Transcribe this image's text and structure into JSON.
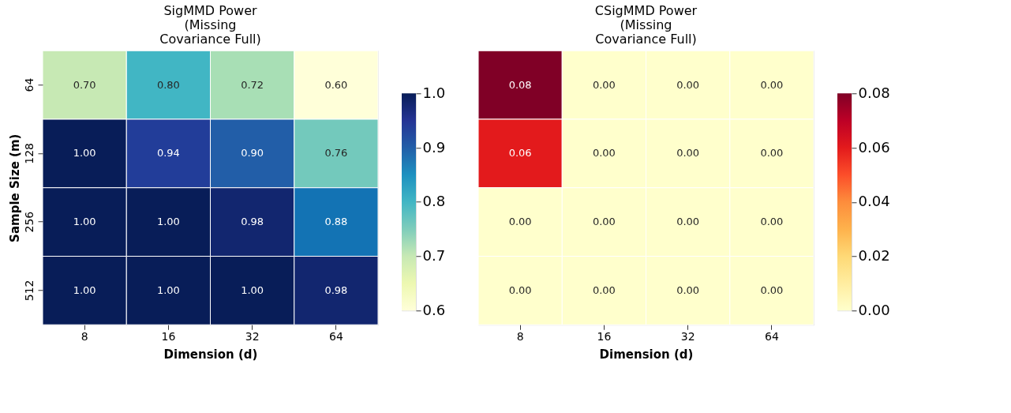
{
  "chart_data": [
    {
      "type": "heatmap",
      "title": "SigMMD Power\n(Missing\nCovariance Full)",
      "xlabel": "Dimension (d)",
      "ylabel": "Sample Size (m)",
      "categories": [
        "8",
        "16",
        "32",
        "64"
      ],
      "y_categories": [
        "64",
        "128",
        "256",
        "512"
      ],
      "cells": [
        [
          0.7,
          0.8,
          0.72,
          0.6
        ],
        [
          1.0,
          0.94,
          0.9,
          0.76
        ],
        [
          1.0,
          1.0,
          0.98,
          0.88
        ],
        [
          1.0,
          1.0,
          1.0,
          0.98
        ]
      ],
      "cell_labels": [
        [
          "0.70",
          "0.80",
          "0.72",
          "0.60"
        ],
        [
          "1.00",
          "0.94",
          "0.90",
          "0.76"
        ],
        [
          "1.00",
          "1.00",
          "0.98",
          "0.88"
        ],
        [
          "1.00",
          "1.00",
          "1.00",
          "0.98"
        ]
      ],
      "clim": [
        0.6,
        1.0
      ],
      "cticks": [
        {
          "value": 0.6,
          "label": "0.6"
        },
        {
          "value": 0.7,
          "label": "0.7"
        },
        {
          "value": 0.8,
          "label": "0.8"
        },
        {
          "value": 0.9,
          "label": "0.9"
        },
        {
          "value": 1.0,
          "label": "1.0"
        }
      ]
    },
    {
      "type": "heatmap",
      "title": "CSigMMD Power\n(Missing\nCovariance Full)",
      "xlabel": "Dimension (d)",
      "tick_labels": "x",
      "categories": [
        "8",
        "16",
        "32",
        "64"
      ],
      "y_categories": [
        "64",
        "128",
        "256",
        "512"
      ],
      "cells": [
        [
          0.08,
          0.0,
          0.0,
          0.0
        ],
        [
          0.06,
          0.0,
          0.0,
          0.0
        ],
        [
          0.0,
          0.0,
          0.0,
          0.0
        ],
        [
          0.0,
          0.0,
          0.0,
          0.0
        ]
      ],
      "cell_labels": [
        [
          "0.08",
          "0.00",
          "0.00",
          "0.00"
        ],
        [
          "0.06",
          "0.00",
          "0.00",
          "0.00"
        ],
        [
          "0.00",
          "0.00",
          "0.00",
          "0.00"
        ],
        [
          "0.00",
          "0.00",
          "0.00",
          "0.00"
        ]
      ],
      "clim": [
        0,
        0.08
      ],
      "cticks": [
        {
          "value": 0,
          "label": "0.00"
        },
        {
          "value": 0.02,
          "label": "0.02"
        },
        {
          "value": 0.04,
          "label": "0.04"
        },
        {
          "value": 0.06,
          "label": "0.06"
        },
        {
          "value": 0.08,
          "label": "0.08"
        }
      ]
    }
  ]
}
